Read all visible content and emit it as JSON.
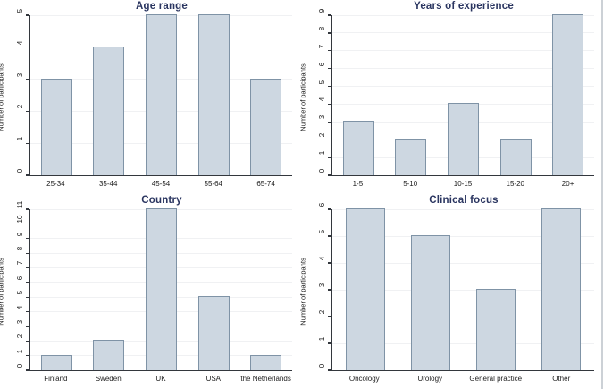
{
  "figure": {
    "kind": "2x2 bar chart panel (survey demographics)",
    "background": "#ffffff"
  },
  "styles": {
    "bar_fill": "#cdd7e1",
    "bar_border": "#7f93a6",
    "title_color": "#2a3560",
    "axis_color": "#33373d",
    "grid_color": "#f0f1f3",
    "tick_label_color": "#1c1c1c",
    "edge_artifact_color": "#ccd1d6"
  },
  "chart_data": [
    {
      "type": "bar",
      "title": "Age range",
      "categories": [
        "25-34",
        "35-44",
        "45-54",
        "55-64",
        "65-74"
      ],
      "values": [
        3,
        4,
        5,
        5,
        3
      ],
      "xlabel": "",
      "ylabel": "Number of participants",
      "ylim": [
        0,
        5
      ],
      "ytick_step": 1,
      "ytick_labels": [
        "0",
        "1",
        "2",
        "3",
        "4",
        "5"
      ],
      "grid": true,
      "legend_position": "none"
    },
    {
      "type": "bar",
      "title": "Years of experience",
      "categories": [
        "1-5",
        "5-10",
        "10-15",
        "15-20",
        "20+"
      ],
      "values": [
        3,
        2,
        4,
        2,
        9
      ],
      "xlabel": "",
      "ylabel": "Number of participants",
      "ylim": [
        0,
        9
      ],
      "ytick_step": 1,
      "ytick_labels": [
        "0",
        "1",
        "2",
        "3",
        "4",
        "5",
        "6",
        "7",
        "8",
        "9"
      ],
      "grid": true,
      "legend_position": "none"
    },
    {
      "type": "bar",
      "title": "Country",
      "categories": [
        "Finland",
        "Sweden",
        "UK",
        "USA",
        "the Netherlands"
      ],
      "values": [
        1,
        2,
        11,
        5,
        1
      ],
      "xlabel": "",
      "ylabel": "Number of participants",
      "ylim": [
        0,
        11
      ],
      "ytick_step": 1,
      "ytick_labels": [
        "0",
        "1",
        "2",
        "3",
        "4",
        "5",
        "6",
        "7",
        "8",
        "9",
        "10",
        "11"
      ],
      "grid": true,
      "legend_position": "none"
    },
    {
      "type": "bar",
      "title": "Clinical focus",
      "categories": [
        "Oncology",
        "Urology",
        "General practice",
        "Other"
      ],
      "values": [
        6,
        5,
        3,
        6
      ],
      "xlabel": "",
      "ylabel": "Number of participants",
      "ylim": [
        0,
        6
      ],
      "ytick_step": 1,
      "ytick_labels": [
        "0",
        "1",
        "2",
        "3",
        "4",
        "5",
        "6"
      ],
      "grid": true,
      "legend_position": "none"
    }
  ]
}
